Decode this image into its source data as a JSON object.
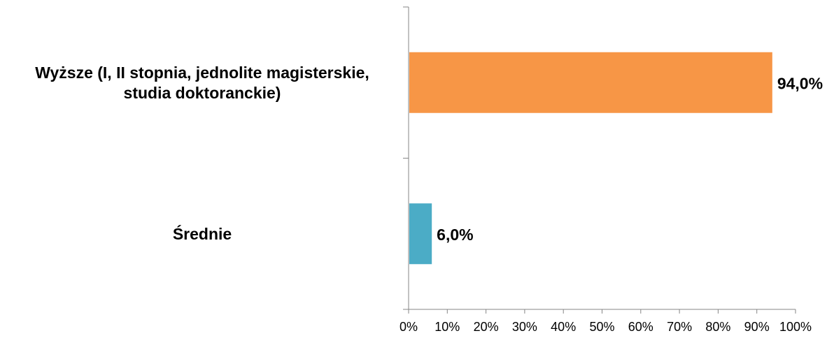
{
  "chart_data": {
    "type": "bar",
    "orientation": "horizontal",
    "categories": [
      [
        "Wyższe (I, II stopnia, jednolite magisterskie,",
        "studia doktoranckie)"
      ],
      [
        "Średnie"
      ]
    ],
    "values": [
      94.0,
      6.0
    ],
    "value_labels": [
      "94,0%",
      "6,0%"
    ],
    "colors": [
      "#F79646",
      "#4BACC6"
    ],
    "xlim": [
      0,
      100
    ],
    "x_ticks": [
      "0%",
      "10%",
      "20%",
      "30%",
      "40%",
      "50%",
      "60%",
      "70%",
      "80%",
      "90%",
      "100%"
    ],
    "title": "",
    "xlabel": "",
    "ylabel": "",
    "grid": false,
    "legend": "none"
  }
}
